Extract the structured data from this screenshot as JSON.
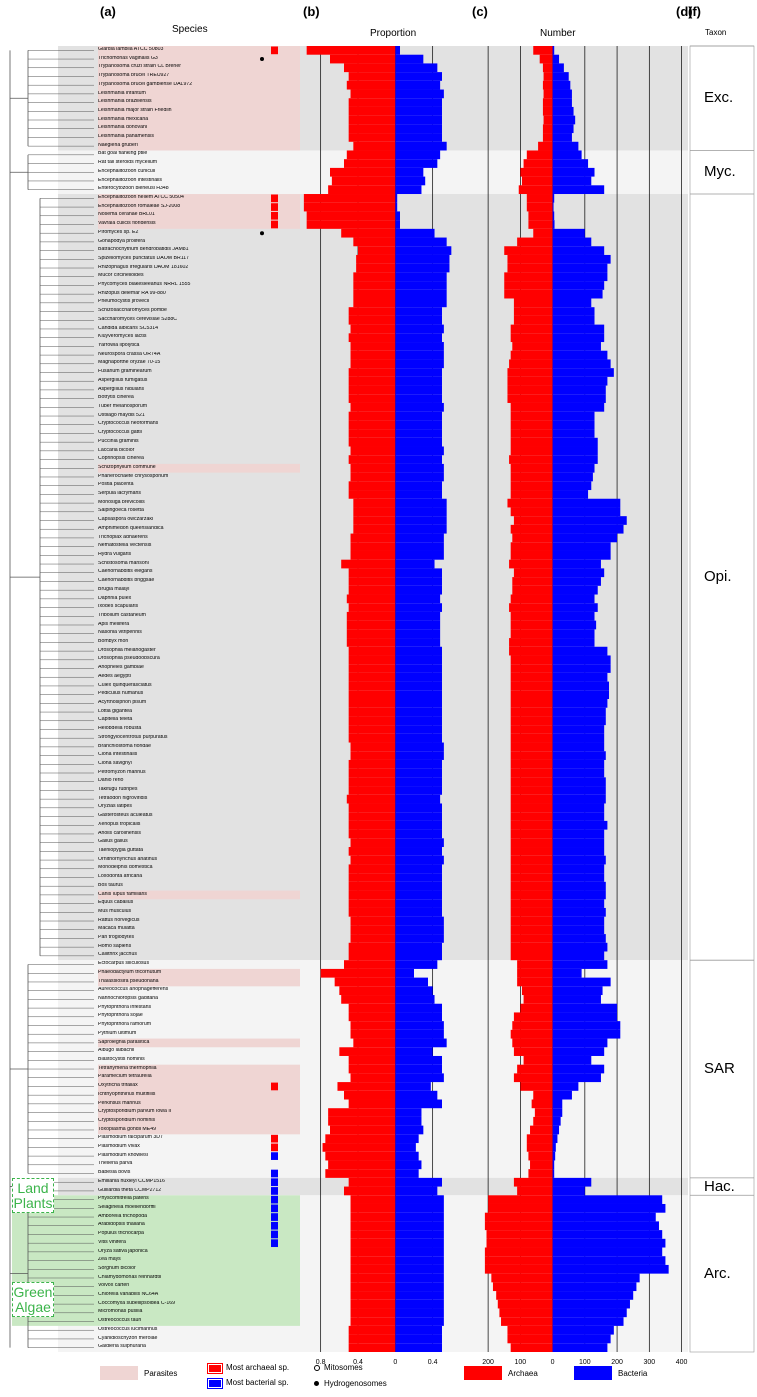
{
  "panels": {
    "a": "(a)",
    "b": "(b)",
    "c": "(c)",
    "d": "(d)",
    "f": "(f)"
  },
  "column_titles": {
    "species": "Species",
    "proportion": "Proportion",
    "number": "Number",
    "taxon": "Taxon"
  },
  "taxa": [
    {
      "label": "Exc.",
      "start": 0,
      "end": 12
    },
    {
      "label": "Myc.",
      "start": 12,
      "end": 17
    },
    {
      "label": "Opi.",
      "start": 17,
      "end": 105
    },
    {
      "label": "SAR",
      "start": 105,
      "end": 130
    },
    {
      "label": "Hac.",
      "start": 130,
      "end": 132
    },
    {
      "label": "Arc.",
      "start": 132,
      "end": 150
    }
  ],
  "group_tags": {
    "land_plants": "Land Plants",
    "green_algae": "Green Algae"
  },
  "species": [
    "Giardia lamblia ATCC 50803",
    "Trichomonas vaginalis G3",
    "Trypanosoma cruzi strain CL Brener",
    "Trypanosoma brucei TREU927",
    "Trypanosoma brucei gambiense DAL972",
    "Leishmania infantum",
    "Leishmania braziliensis",
    "Leishmania major strain Friedlin",
    "Leishmania mexicana",
    "Leishmania donovani",
    "Leishmania panamensis",
    "Naegleria gruberi",
    "Bat goal flanking ptile",
    "Rat tail steroids mycelium",
    "Encephalitozoon cuniculi",
    "Encephalitozoon intestinalis",
    "Enterocytozoon bieneusi H348",
    "Encephalitozoon hellem ATCC 50504",
    "Encephalitozoon romaleae SJ-2008",
    "Nosema ceranae BRL01",
    "Vavraia culicis floridensis",
    "Piromyces sp. E2",
    "Gonapodya prolifera",
    "Batrachochytrium dendrobatidis JAM81",
    "Spizellomyces punctatus DAOM BR117",
    "Rhizophagus irregularis DAOM 181602",
    "Mucor circinelloides",
    "Phycomyces blakesleeanus NRRL 1555",
    "Rhizopus delemar RA 99-880",
    "Pneumocystis jirovecii",
    "Schizosaccharomyces pombe",
    "Saccharomyces cerevisiae S288C",
    "Candida albicans SC5314",
    "Kluyveromyces lactis",
    "Yarrowia lipolytica",
    "Neurospora crassa OR74A",
    "Magnaporthe oryzae 70-15",
    "Fusarium graminearum",
    "Aspergillus fumigatus",
    "Aspergillus nidulans",
    "Botrytis cinerea",
    "Tuber melanosporum",
    "Ustilago maydis 521",
    "Cryptococcus neoformans",
    "Cryptococcus gattii",
    "Puccinia graminis",
    "Laccaria bicolor",
    "Coprinopsis cinerea",
    "Schizophyllum commune",
    "Phanerochaete chrysosporium",
    "Postia placenta",
    "Serpula lacrymans",
    "Monosiga brevicollis",
    "Salpingoeca rosetta",
    "Capsaspora owczarzaki",
    "Amphimedon queenslandica",
    "Trichoplax adhaerens",
    "Nematostella vectensis",
    "Hydra vulgaris",
    "Schistosoma mansoni",
    "Caenorhabditis elegans",
    "Caenorhabditis briggsae",
    "Brugia malayi",
    "Daphnia pulex",
    "Ixodes scapularis",
    "Tribolium castaneum",
    "Apis mellifera",
    "Nasonia vitripennis",
    "Bombyx mori",
    "Drosophila melanogaster",
    "Drosophila pseudoobscura",
    "Anopheles gambiae",
    "Aedes aegypti",
    "Culex quinquefasciatus",
    "Pediculus humanus",
    "Acyrthosiphon pisum",
    "Lottia gigantea",
    "Capitella teleta",
    "Helobdella robusta",
    "Strongylocentrotus purpuratus",
    "Branchiostoma floridae",
    "Ciona intestinalis",
    "Ciona savignyi",
    "Petromyzon marinus",
    "Danio rerio",
    "Takifugu rubripes",
    "Tetraodon nigroviridis",
    "Oryzias latipes",
    "Gasterosteus aculeatus",
    "Xenopus tropicalis",
    "Anolis carolinensis",
    "Gallus gallus",
    "Taeniopygia guttata",
    "Ornithorhynchus anatinus",
    "Monodelphis domestica",
    "Loxodonta africana",
    "Bos taurus",
    "Canis lupus familiaris",
    "Equus caballus",
    "Mus musculus",
    "Rattus norvegicus",
    "Macaca mulatta",
    "Pan troglodytes",
    "Homo sapiens",
    "Callithrix jacchus",
    "Ectocarpus siliculosus",
    "Phaeodactylum tricornutum",
    "Thalassiosira pseudonana",
    "Aureococcus anophagefferens",
    "Nannochloropsis gaditana",
    "Phytophthora infestans",
    "Phytophthora sojae",
    "Phytophthora ramorum",
    "Pythium ultimum",
    "Saprolegnia parasitica",
    "Albugo laibachii",
    "Blastocystis hominis",
    "Tetrahymena thermophila",
    "Paramecium tetraurelia",
    "Oxytricha trifallax",
    "Ichthyophthirius multifiliis",
    "Perkinsus marinus",
    "Cryptosporidium parvum Iowa II",
    "Cryptosporidium hominis",
    "Toxoplasma gondii ME49",
    "Plasmodium falciparum 3D7",
    "Plasmodium vivax",
    "Plasmodium knowlesi",
    "Theileria parva",
    "Babesia bovis",
    "Emiliania huxleyi CCMP1516",
    "Guillardia theta CCMP2712",
    "Physcomitrella patens",
    "Selaginella moellendorffii",
    "Amborella trichopoda",
    "Arabidopsis thaliana",
    "Populus trichocarpa",
    "Vitis vinifera",
    "Oryza sativa japonica",
    "Zea mays",
    "Sorghum bicolor",
    "Chlamydomonas reinhardtii",
    "Volvox carteri",
    "Chlorella variabilis NC64A",
    "Coccomyxa subellipsoidea C-169",
    "Micromonas pusilla",
    "Ostreococcus tauri",
    "Ostreococcus lucimarinus",
    "Cyanidioschyzon merolae",
    "Galdieria sulphuraria"
  ],
  "mark_types": [
    "A",
    "H",
    "",
    "",
    "",
    "",
    "",
    "",
    "",
    "",
    "",
    "",
    "",
    "",
    "",
    "",
    "",
    "A",
    "A",
    "A",
    "A",
    "H",
    "",
    "",
    "",
    "",
    "",
    "",
    "",
    "",
    "",
    "",
    "",
    "",
    "",
    "",
    "",
    "",
    "",
    "",
    "",
    "",
    "",
    "",
    "",
    "",
    "",
    "",
    "",
    "",
    "",
    "",
    "",
    "",
    "",
    "",
    "",
    "",
    "",
    "",
    "",
    "",
    "",
    "",
    "",
    "",
    "",
    "",
    "",
    "",
    "",
    "",
    "",
    "",
    "",
    "",
    "",
    "",
    "",
    "",
    "",
    "",
    "",
    "",
    "",
    "",
    "",
    "",
    "",
    "",
    "",
    "",
    "",
    "",
    "",
    "",
    "",
    "",
    "",
    "",
    "",
    "",
    "",
    "",
    "",
    "",
    "",
    "",
    "",
    "",
    "",
    "",
    "",
    "",
    "",
    "",
    "",
    "",
    "",
    "A",
    "",
    "",
    "",
    "",
    "",
    "A",
    "A",
    "B",
    "",
    "B",
    "B",
    "B",
    "B",
    "B",
    "B",
    "B",
    "B",
    "B",
    "",
    "",
    "",
    "",
    "",
    "",
    "",
    "",
    ""
  ],
  "chart_data": {
    "type": "bar",
    "panels": [
      {
        "id": "proportion",
        "title": "Proportion",
        "xlim": [
          -1.0,
          0.8
        ],
        "ticks": [
          -0.8,
          -0.4,
          0,
          0.4
        ],
        "tick_labels": [
          "0.8",
          "0.4",
          "0",
          "0.4"
        ],
        "series": [
          {
            "name": "Archaea",
            "color": "#ff0000"
          },
          {
            "name": "Bacteria",
            "color": "#0000ff"
          }
        ]
      },
      {
        "id": "number",
        "title": "Number",
        "xlim": [
          -250,
          420
        ],
        "ticks": [
          -200,
          -100,
          0,
          100,
          200,
          300,
          400
        ],
        "tick_labels": [
          "200",
          "100",
          "0",
          "100",
          "200",
          "300",
          "400"
        ],
        "series": [
          {
            "name": "Archaea",
            "color": "#ff0000"
          },
          {
            "name": "Bacteria",
            "color": "#0000ff"
          }
        ]
      }
    ],
    "archaea_proportion": [
      0.95,
      0.7,
      0.55,
      0.5,
      0.52,
      0.48,
      0.5,
      0.5,
      0.5,
      0.5,
      0.5,
      0.45,
      0.52,
      0.55,
      0.7,
      0.68,
      0.72,
      0.98,
      0.98,
      0.95,
      0.95,
      0.58,
      0.45,
      0.4,
      0.42,
      0.42,
      0.45,
      0.45,
      0.45,
      0.45,
      0.5,
      0.5,
      0.48,
      0.5,
      0.48,
      0.48,
      0.48,
      0.5,
      0.5,
      0.5,
      0.5,
      0.48,
      0.5,
      0.5,
      0.5,
      0.5,
      0.48,
      0.5,
      0.48,
      0.48,
      0.5,
      0.5,
      0.45,
      0.45,
      0.45,
      0.45,
      0.48,
      0.48,
      0.48,
      0.58,
      0.5,
      0.5,
      0.5,
      0.52,
      0.5,
      0.52,
      0.52,
      0.52,
      0.52,
      0.5,
      0.5,
      0.5,
      0.5,
      0.5,
      0.5,
      0.5,
      0.5,
      0.5,
      0.5,
      0.5,
      0.48,
      0.48,
      0.5,
      0.5,
      0.5,
      0.5,
      0.52,
      0.5,
      0.5,
      0.5,
      0.5,
      0.48,
      0.5,
      0.48,
      0.5,
      0.5,
      0.5,
      0.5,
      0.5,
      0.5,
      0.48,
      0.48,
      0.48,
      0.5,
      0.5,
      0.55,
      0.8,
      0.65,
      0.6,
      0.58,
      0.5,
      0.5,
      0.48,
      0.48,
      0.45,
      0.6,
      0.5,
      0.5,
      0.48,
      0.62,
      0.55,
      0.5,
      0.72,
      0.72,
      0.7,
      0.75,
      0.78,
      0.75,
      0.72,
      0.75,
      0.5,
      0.55,
      0.48,
      0.48,
      0.48,
      0.48,
      0.48,
      0.48,
      0.48,
      0.48,
      0.48,
      0.48,
      0.48,
      0.48,
      0.48,
      0.48,
      0.48,
      0.5,
      0.5,
      0.5
    ],
    "bacteria_proportion": [
      0.05,
      0.3,
      0.45,
      0.5,
      0.48,
      0.52,
      0.5,
      0.5,
      0.5,
      0.5,
      0.5,
      0.55,
      0.48,
      0.45,
      0.3,
      0.32,
      0.28,
      0.02,
      0.02,
      0.05,
      0.05,
      0.42,
      0.55,
      0.6,
      0.58,
      0.58,
      0.55,
      0.55,
      0.55,
      0.55,
      0.5,
      0.5,
      0.52,
      0.5,
      0.52,
      0.52,
      0.52,
      0.5,
      0.5,
      0.5,
      0.5,
      0.52,
      0.5,
      0.5,
      0.5,
      0.5,
      0.52,
      0.5,
      0.52,
      0.52,
      0.5,
      0.5,
      0.55,
      0.55,
      0.55,
      0.55,
      0.52,
      0.52,
      0.52,
      0.42,
      0.5,
      0.5,
      0.5,
      0.48,
      0.5,
      0.48,
      0.48,
      0.48,
      0.48,
      0.5,
      0.5,
      0.5,
      0.5,
      0.5,
      0.5,
      0.5,
      0.5,
      0.5,
      0.5,
      0.5,
      0.52,
      0.52,
      0.5,
      0.5,
      0.5,
      0.5,
      0.48,
      0.5,
      0.5,
      0.5,
      0.5,
      0.52,
      0.5,
      0.52,
      0.5,
      0.5,
      0.5,
      0.5,
      0.5,
      0.5,
      0.52,
      0.52,
      0.52,
      0.5,
      0.5,
      0.45,
      0.2,
      0.35,
      0.4,
      0.42,
      0.5,
      0.5,
      0.52,
      0.52,
      0.55,
      0.4,
      0.5,
      0.5,
      0.52,
      0.38,
      0.45,
      0.5,
      0.28,
      0.28,
      0.3,
      0.25,
      0.22,
      0.25,
      0.28,
      0.25,
      0.5,
      0.45,
      0.52,
      0.52,
      0.52,
      0.52,
      0.52,
      0.52,
      0.52,
      0.52,
      0.52,
      0.52,
      0.52,
      0.52,
      0.52,
      0.52,
      0.52,
      0.5,
      0.5,
      0.5
    ],
    "archaea_number": [
      60,
      40,
      30,
      28,
      30,
      28,
      30,
      30,
      28,
      30,
      30,
      45,
      80,
      90,
      100,
      95,
      105,
      80,
      80,
      75,
      75,
      60,
      110,
      150,
      140,
      140,
      150,
      150,
      150,
      120,
      120,
      120,
      130,
      130,
      125,
      130,
      135,
      140,
      140,
      140,
      140,
      130,
      130,
      130,
      130,
      130,
      130,
      135,
      130,
      130,
      130,
      130,
      140,
      130,
      120,
      130,
      125,
      130,
      130,
      135,
      120,
      125,
      125,
      130,
      135,
      130,
      130,
      130,
      135,
      135,
      130,
      130,
      130,
      130,
      130,
      130,
      130,
      130,
      130,
      130,
      130,
      130,
      130,
      130,
      130,
      130,
      130,
      130,
      130,
      130,
      130,
      130,
      130,
      130,
      130,
      130,
      130,
      130,
      130,
      130,
      130,
      130,
      130,
      130,
      130,
      110,
      110,
      110,
      95,
      90,
      100,
      120,
      125,
      130,
      125,
      120,
      90,
      110,
      120,
      100,
      60,
      65,
      55,
      60,
      70,
      80,
      80,
      75,
      70,
      75,
      120,
      110,
      200,
      200,
      210,
      210,
      205,
      205,
      210,
      210,
      210,
      190,
      185,
      175,
      170,
      165,
      160,
      140,
      140,
      130
    ],
    "bacteria_number": [
      5,
      20,
      35,
      50,
      55,
      60,
      60,
      65,
      70,
      65,
      60,
      80,
      90,
      110,
      130,
      120,
      160,
      5,
      3,
      5,
      6,
      100,
      120,
      160,
      180,
      170,
      170,
      160,
      155,
      120,
      130,
      130,
      160,
      160,
      150,
      170,
      180,
      190,
      170,
      165,
      165,
      160,
      130,
      130,
      130,
      140,
      140,
      140,
      130,
      125,
      120,
      110,
      210,
      210,
      230,
      220,
      200,
      180,
      180,
      150,
      160,
      150,
      140,
      130,
      140,
      130,
      135,
      130,
      130,
      170,
      180,
      180,
      170,
      175,
      175,
      170,
      165,
      165,
      160,
      160,
      160,
      165,
      160,
      160,
      165,
      165,
      165,
      160,
      160,
      170,
      160,
      160,
      160,
      165,
      160,
      160,
      165,
      165,
      160,
      165,
      160,
      160,
      165,
      170,
      160,
      170,
      90,
      180,
      155,
      150,
      200,
      200,
      210,
      210,
      170,
      160,
      120,
      160,
      150,
      80,
      60,
      30,
      30,
      25,
      20,
      15,
      10,
      8,
      5,
      5,
      120,
      100,
      340,
      350,
      320,
      330,
      340,
      350,
      340,
      350,
      360,
      270,
      260,
      250,
      240,
      230,
      220,
      190,
      180,
      170
    ],
    "legend": {
      "archaea": "Archaea",
      "bacteria": "Bacteria",
      "parasites": "Parasites",
      "most_archaeal": "Most archaeal sp.",
      "most_bacterial": "Most bacterial sp.",
      "mitosomes": "Mitosomes",
      "hydrogenosomes": "Hydrogenosomes"
    }
  },
  "colors": {
    "archaea": "#ff0000",
    "bacteria": "#0000ff",
    "parasite_bg": "#efd5d3",
    "gray_band": "#e2e2e2",
    "light_band": "#f4f4f4",
    "green_band": "#c9e8c3",
    "green_text": "#3cb44b",
    "tree": "#555555"
  },
  "parasite_rows": [
    [
      0,
      12
    ],
    [
      17,
      21
    ],
    [
      48,
      49
    ],
    [
      97,
      98
    ],
    [
      106,
      108
    ],
    [
      114,
      115
    ],
    [
      117,
      125
    ]
  ]
}
